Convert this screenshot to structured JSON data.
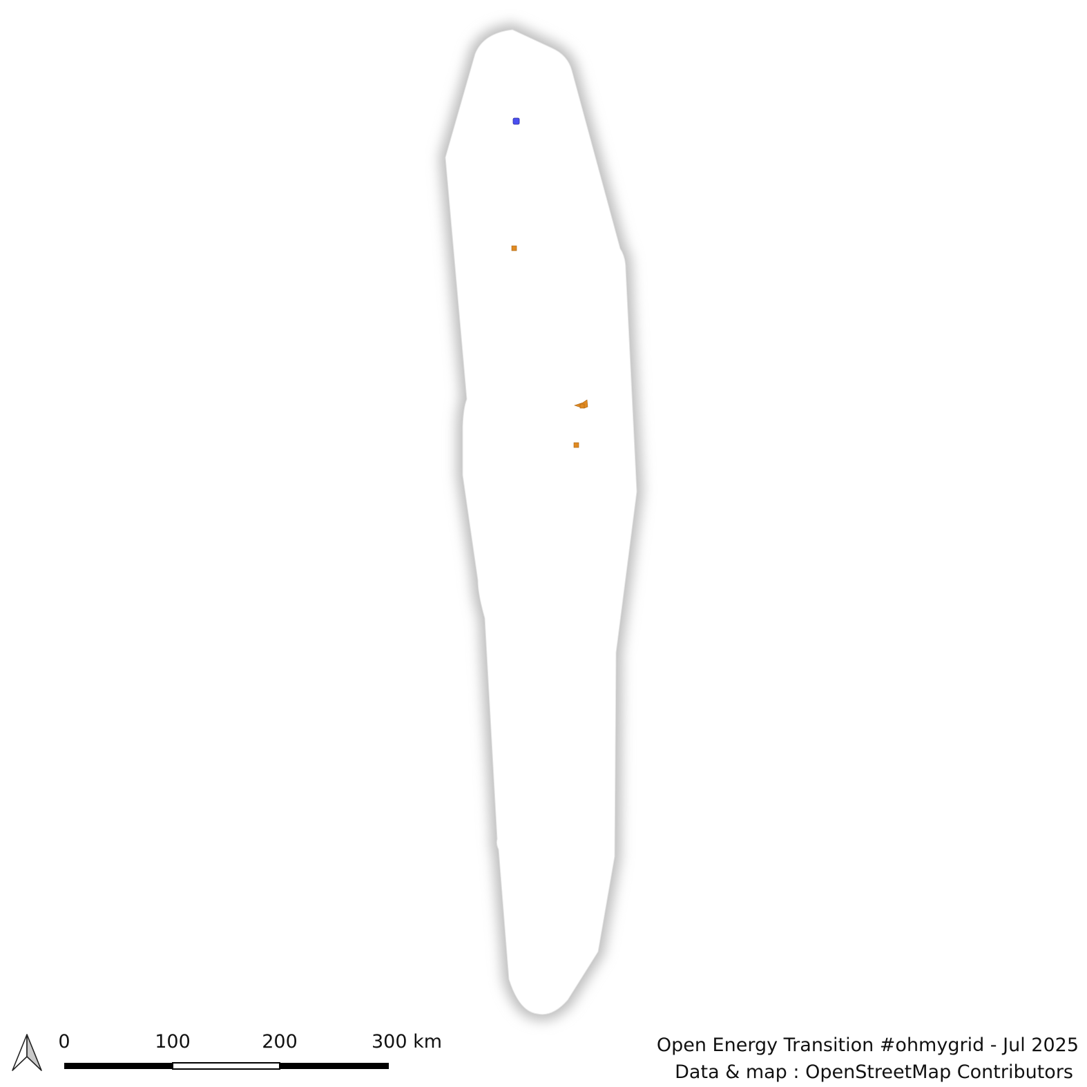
{
  "map": {
    "region_fill": "#ffffff",
    "region_halo_color": "#bdbdbd",
    "features": [
      {
        "kind": "substation",
        "color": "#4a4ff0"
      },
      {
        "kind": "power-plant",
        "color": "#e08a22"
      },
      {
        "kind": "power-plant-cluster",
        "color": "#e08a22"
      },
      {
        "kind": "power-plant",
        "color": "#e08a22"
      }
    ]
  },
  "north_arrow": {
    "icon": "north-arrow-icon"
  },
  "scale_bar": {
    "labels": [
      "0",
      "100",
      "200",
      "300 km"
    ],
    "unit": "km"
  },
  "credits": {
    "line1": "Open Energy Transition #ohmygrid - Jul 2025",
    "line2": "Data & map : OpenStreetMap Contributors"
  }
}
